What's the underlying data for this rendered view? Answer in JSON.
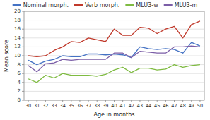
{
  "chart_data": {
    "type": "line",
    "xlabel": "Age in months",
    "ylabel": "Mean score",
    "x": [
      30,
      31,
      32,
      33,
      34,
      35,
      36,
      37,
      38,
      39,
      40,
      41,
      42,
      43,
      44,
      45,
      46,
      47,
      48,
      49,
      50
    ],
    "series": [
      {
        "name": "Nominal morph.",
        "color": "#4472c4",
        "values": [
          9.0,
          8.0,
          8.8,
          9.2,
          10.0,
          9.8,
          9.8,
          10.4,
          10.4,
          10.2,
          10.4,
          10.2,
          9.6,
          12.0,
          11.6,
          11.4,
          11.6,
          11.4,
          10.6,
          13.0,
          12.2
        ]
      },
      {
        "name": "Verb morph.",
        "color": "#c0392b",
        "values": [
          10.0,
          9.8,
          10.0,
          11.2,
          12.0,
          13.2,
          13.0,
          14.0,
          13.6,
          13.2,
          16.0,
          14.6,
          14.6,
          16.4,
          16.2,
          15.0,
          16.0,
          16.6,
          14.0,
          17.0,
          17.8
        ]
      },
      {
        "name": "MLU3-w",
        "color": "#7fbb42",
        "values": [
          4.8,
          4.0,
          5.6,
          5.0,
          6.0,
          5.6,
          5.6,
          5.6,
          5.4,
          5.8,
          6.8,
          7.4,
          6.2,
          7.2,
          7.2,
          6.8,
          7.0,
          8.0,
          7.4,
          7.8,
          8.0
        ]
      },
      {
        "name": "MLU3-m",
        "color": "#7B5EA7",
        "values": [
          7.8,
          6.4,
          8.2,
          8.4,
          9.2,
          9.0,
          9.2,
          9.2,
          9.2,
          9.2,
          10.6,
          10.6,
          9.6,
          11.0,
          10.8,
          10.6,
          10.6,
          12.0,
          12.0,
          12.2,
          12.0
        ]
      }
    ],
    "xlim": [
      29.5,
      50.5
    ],
    "xticks": [
      30,
      31,
      32,
      33,
      34,
      35,
      36,
      37,
      38,
      39,
      40,
      41,
      42,
      43,
      44,
      45,
      46,
      47,
      48,
      49,
      50
    ],
    "ylim": [
      0,
      20
    ],
    "yticks": [
      0,
      2,
      4,
      6,
      8,
      10,
      12,
      14,
      16,
      18,
      20
    ],
    "grid": true,
    "legend": "top"
  }
}
